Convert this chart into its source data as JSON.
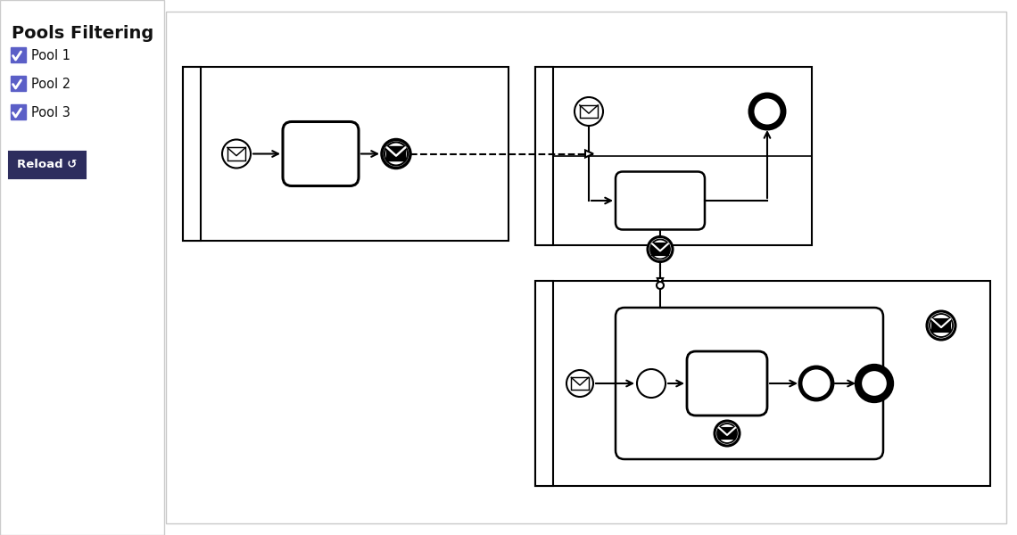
{
  "title": "Pools Filtering",
  "bg_color": "#ffffff",
  "checkbox_color": "#5b5fc7",
  "button_color": "#2d2d5e",
  "pools": [
    "Pool 1",
    "Pool 2",
    "Pool 3"
  ]
}
